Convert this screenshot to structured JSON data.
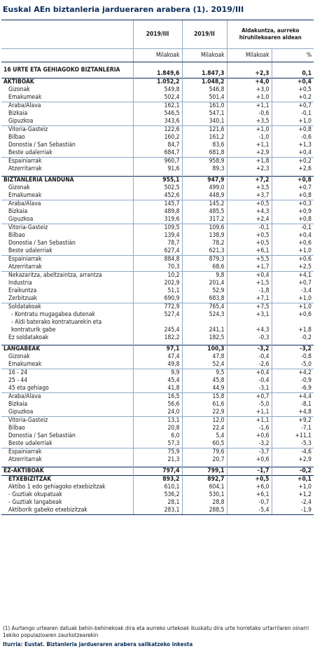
{
  "title": "Euskal AEn biztanleria jardueraren arabera (1). 2019/III",
  "header": {
    "col1": "2019/III",
    "col2": "2019/II",
    "change_group": "Aldakuntza, aurreko hiruhilekoaren aldean",
    "units": [
      "Milakoak",
      "Milakoak",
      "Milakoak",
      "%"
    ]
  },
  "rows": [
    {
      "label": "16 URTE ETA GEHIAGOKO BIZTANLERIA",
      "v1": "1.849,6",
      "v2": "1.847,3",
      "d": "+2,3",
      "p": "0,1",
      "bold": true,
      "two": true,
      "grp": true
    },
    {
      "label": "AKTIBOAK",
      "v1": "1.052,2",
      "v2": "1.048,2",
      "d": "+4,0",
      "p": "+0,4",
      "bold": true,
      "grp": true
    },
    {
      "label": "Gizonak",
      "v1": "549,8",
      "v2": "546,8",
      "d": "+3,0",
      "p": "+0,5",
      "ind": 1
    },
    {
      "label": "Emakumeak",
      "v1": "502,4",
      "v2": "501,4",
      "d": "+1,0",
      "p": "+0,2",
      "ind": 1
    },
    {
      "label": "Araba/Álava",
      "v1": "162,1",
      "v2": "161,0",
      "d": "+1,1",
      "p": "+0,7",
      "ind": 1,
      "sub": true
    },
    {
      "label": "Bizkaia",
      "v1": "546,5",
      "v2": "547,1",
      "d": "-0,6",
      "p": "-0,1",
      "ind": 1
    },
    {
      "label": "Gipuzkoa",
      "v1": "343,6",
      "v2": "340,1",
      "d": "+3,5",
      "p": "+1,0",
      "ind": 1
    },
    {
      "label": "Vitoria-Gasteiz",
      "v1": "122,6",
      "v2": "121,6",
      "d": "+1,0",
      "p": "+0,8",
      "ind": 1,
      "sub": true
    },
    {
      "label": "Bilbao",
      "v1": "160,2",
      "v2": "161,2",
      "d": "-1,0",
      "p": "-0,6",
      "ind": 1
    },
    {
      "label": "Donostia / San Sebastián",
      "v1": "84,7",
      "v2": "83,6",
      "d": "+1,1",
      "p": "+1,3",
      "ind": 1
    },
    {
      "label": "Beste udalerriak",
      "v1": "684,7",
      "v2": "681,8",
      "d": "+2,9",
      "p": "+0,4",
      "ind": 1
    },
    {
      "label": "Espainiarrak",
      "v1": "960,7",
      "v2": "958,9",
      "d": "+1,8",
      "p": "+0,2",
      "ind": 1,
      "sub": true
    },
    {
      "label": "Atzerritarrak",
      "v1": "91,6",
      "v2": "89,3",
      "d": "+2,3",
      "p": "+2,6",
      "ind": 1
    },
    {
      "label": "BIZTANLERIA LANDUNA",
      "v1": "955,1",
      "v2": "947,9",
      "d": "+7,2",
      "p": "+0,8",
      "bold": true,
      "grp": true,
      "gap": true
    },
    {
      "label": "Gizonak",
      "v1": "502,5",
      "v2": "499,0",
      "d": "+3,5",
      "p": "+0,7",
      "ind": 1
    },
    {
      "label": "Emakumeak",
      "v1": "452,6",
      "v2": "448,9",
      "d": "+3,7",
      "p": "+0,8",
      "ind": 1
    },
    {
      "label": "Araba/Álava",
      "v1": "145,7",
      "v2": "145,2",
      "d": "+0,5",
      "p": "+0,3",
      "ind": 1,
      "sub": true
    },
    {
      "label": "Bizkaia",
      "v1": "489,8",
      "v2": "485,5",
      "d": "+4,3",
      "p": "+0,9",
      "ind": 1
    },
    {
      "label": "Gipuzkoa",
      "v1": "319,6",
      "v2": "317,2",
      "d": "+2,4",
      "p": "+0,8",
      "ind": 1
    },
    {
      "label": "Vitoria-Gasteiz",
      "v1": "109,5",
      "v2": "109,6",
      "d": "-0,1",
      "p": "-0,1",
      "ind": 1,
      "sub": true
    },
    {
      "label": "Bilbao",
      "v1": "139,4",
      "v2": "138,9",
      "d": "+0,5",
      "p": "+0,4",
      "ind": 1
    },
    {
      "label": "Donostia / San Sebastián",
      "v1": "78,7",
      "v2": "78,2",
      "d": "+0,5",
      "p": "+0,6",
      "ind": 1
    },
    {
      "label": "Beste udalerriak",
      "v1": "627,4",
      "v2": "621,3",
      "d": "+6,1",
      "p": "+1,0",
      "ind": 1
    },
    {
      "label": "Espainiarrak",
      "v1": "884,8",
      "v2": "879,3",
      "d": "+5,5",
      "p": "+0,6",
      "ind": 1,
      "sub": true
    },
    {
      "label": "Atzerritarrak",
      "v1": "70,3",
      "v2": "68,6",
      "d": "+1,7",
      "p": "+2,5",
      "ind": 1
    },
    {
      "label": "Nekazaritza, abeltzaintza, arrantza",
      "v1": "10,2",
      "v2": "9,8",
      "d": "+0,4",
      "p": "+4,1",
      "ind": 1,
      "sub": true
    },
    {
      "label": "Industria",
      "v1": "202,9",
      "v2": "201,4",
      "d": "+1,5",
      "p": "+0,7",
      "ind": 1
    },
    {
      "label": "Eraikuntza",
      "v1": "51,1",
      "v2": "52,9",
      "d": "-1,8",
      "p": "-3,4",
      "ind": 1
    },
    {
      "label": "Zerbitzuak",
      "v1": "690,9",
      "v2": "683,8",
      "d": "+7,1",
      "p": "+1,0",
      "ind": 1
    },
    {
      "label": "Soldatakoak",
      "v1": "772,9",
      "v2": "765,4",
      "d": "+7,5",
      "p": "+1,0",
      "ind": 1,
      "sub": true
    },
    {
      "label": "- Kontratu mugagabea dutenak",
      "v1": "527,4",
      "v2": "524,3",
      "d": "+3,1",
      "p": "+0,6",
      "ind": 2
    },
    {
      "label": "- Aldi baterako kontratuarekin eta kontraturik gabe",
      "v1": "245,4",
      "v2": "241,1",
      "d": "+4,3",
      "p": "+1,8",
      "ind": 2,
      "two": true
    },
    {
      "label": "Ez soldatakoak",
      "v1": "182,2",
      "v2": "182,5",
      "d": "-0,3",
      "p": "-0,2",
      "ind": 1
    },
    {
      "label": "LANGABEAK",
      "v1": "97,1",
      "v2": "100,3",
      "d": "-3,2",
      "p": "-3,2",
      "bold": true,
      "grp": true,
      "gap": true
    },
    {
      "label": "Gizonak",
      "v1": "47,4",
      "v2": "47,8",
      "d": "-0,4",
      "p": "-0,8",
      "ind": 1
    },
    {
      "label": "Emakumeak",
      "v1": "49,8",
      "v2": "52,4",
      "d": "-2,6",
      "p": "-5,0",
      "ind": 1
    },
    {
      "label": "16 - 24",
      "v1": "9,9",
      "v2": "9,5",
      "d": "+0,4",
      "p": "+4,2",
      "ind": 1,
      "sub": true
    },
    {
      "label": "25 - 44",
      "v1": "45,4",
      "v2": "45,8",
      "d": "-0,4",
      "p": "-0,9",
      "ind": 1
    },
    {
      "label": "45 eta gehiago",
      "v1": "41,8",
      "v2": "44,9",
      "d": "-3,1",
      "p": "-6,9",
      "ind": 1
    },
    {
      "label": "Araba/Álava",
      "v1": "16,5",
      "v2": "15,8",
      "d": "+0,7",
      "p": "+4,4",
      "ind": 1,
      "sub": true
    },
    {
      "label": "Bizkaia",
      "v1": "56,6",
      "v2": "61,6",
      "d": "-5,0",
      "p": "-8,1",
      "ind": 1
    },
    {
      "label": "Gipuzkoa",
      "v1": "24,0",
      "v2": "22,9",
      "d": "+1,1",
      "p": "+4,8",
      "ind": 1
    },
    {
      "label": "Vitoria-Gasteiz",
      "v1": "13,1",
      "v2": "12,0",
      "d": "+1,1",
      "p": "+9,2",
      "ind": 1,
      "sub": true
    },
    {
      "label": "Bilbao",
      "v1": "20,8",
      "v2": "22,4",
      "d": "-1,6",
      "p": "-7,1",
      "ind": 1
    },
    {
      "label": "Donostia / San Sebastián",
      "v1": "6,0",
      "v2": "5,4",
      "d": "+0,6",
      "p": "+11,1",
      "ind": 1
    },
    {
      "label": "Beste udalerriak",
      "v1": "57,3",
      "v2": "60,5",
      "d": "-3,2",
      "p": "-5,3",
      "ind": 1
    },
    {
      "label": "Espainiarrak",
      "v1": "75,9",
      "v2": "79,6",
      "d": "-3,7",
      "p": "-4,6",
      "ind": 1,
      "sub": true
    },
    {
      "label": "Atzerritarrak",
      "v1": "21,3",
      "v2": "20,7",
      "d": "+0,6",
      "p": "+2,9",
      "ind": 1
    },
    {
      "label": "EZ-AKTIBOAK",
      "v1": "797,4",
      "v2": "799,1",
      "d": "-1,7",
      "p": "-0,2",
      "bold": true,
      "grp": true,
      "gap": true
    },
    {
      "label": "ETXEBIZITZAK",
      "v1": "893,2",
      "v2": "892,7",
      "d": "+0,5",
      "p": "+0,1",
      "bold": true,
      "grp": true,
      "ind": 1
    },
    {
      "label": "Aktibo 1 edo gehiagoko etxebizitzak",
      "v1": "610,1",
      "v2": "604,1",
      "d": "+6,0",
      "p": "+1,0",
      "ind": 1
    },
    {
      "label": "- Guztiak okupatuak",
      "v1": "536,2",
      "v2": "530,1",
      "d": "+6,1",
      "p": "+1,2",
      "ind": 1
    },
    {
      "label": "- Guztiak langabeak",
      "v1": "28,1",
      "v2": "28,8",
      "d": "-0,7",
      "p": "-2,4",
      "ind": 1
    },
    {
      "label": "Aktiborik gabeko etxebizitzak",
      "v1": "283,1",
      "v2": "288,5",
      "d": "-5,4",
      "p": "-1,9",
      "ind": 1,
      "last": true
    }
  ],
  "note": "(1) Aurtengo urtearen datuak behin-behinekoak dira eta aurreko urtekoak ikuskatu dira urte horretako urtarrilaren oinarri 1ekiko populazioaren zaurkotzearekin",
  "source": "Iturria: Eustat. Biztanleria jardueraren arabera sailkatzeko inkesta"
}
